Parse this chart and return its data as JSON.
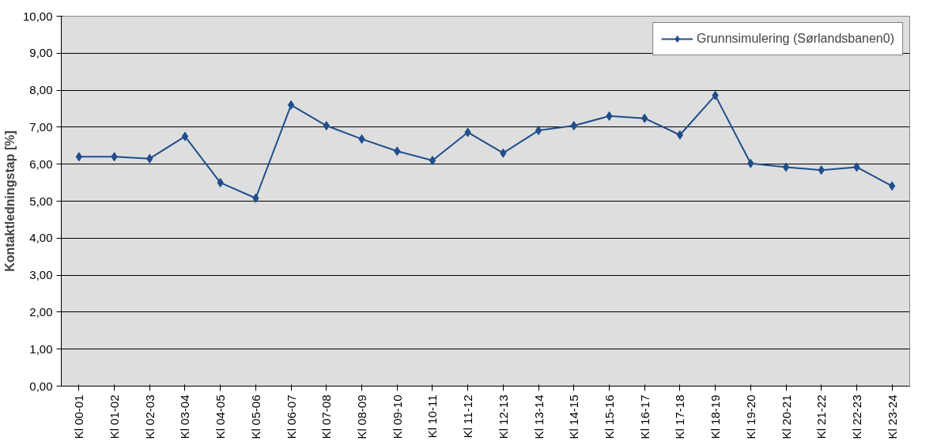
{
  "chart_data": {
    "type": "line",
    "ylabel": "Kontaktledningstap [%]",
    "categories": [
      "Kl 00-01",
      "Kl 01-02",
      "Kl 02-03",
      "Kl 03-04",
      "Kl 04-05",
      "Kl 05-06",
      "Kl 06-07",
      "Kl 07-08",
      "Kl 08-09",
      "Kl 09-10",
      "Kl 10-11",
      "Kl 11-12",
      "Kl 12-13",
      "Kl 13-14",
      "Kl 14-15",
      "Kl 15-16",
      "Kl 16-17",
      "Kl 17-18",
      "Kl 18-19",
      "Kl 19-20",
      "Kl 20-21",
      "Kl 21-22",
      "Kl 22-23",
      "Kl 23-24"
    ],
    "series": [
      {
        "name": "Grunnsimulering (Sørlandsbanen0)",
        "color": "#1f4e8c",
        "values": [
          6.2,
          6.2,
          6.15,
          6.75,
          5.5,
          5.08,
          7.6,
          7.04,
          6.68,
          6.35,
          6.1,
          6.86,
          6.3,
          6.91,
          7.04,
          7.3,
          7.24,
          6.79,
          7.86,
          6.02,
          5.92,
          5.84,
          5.92,
          5.41
        ]
      }
    ],
    "ylim": [
      0,
      10
    ],
    "yticks": [
      {
        "value": 0,
        "label": "0,00"
      },
      {
        "value": 1,
        "label": "1,00"
      },
      {
        "value": 2,
        "label": "2,00"
      },
      {
        "value": 3,
        "label": "3,00"
      },
      {
        "value": 4,
        "label": "4,00"
      },
      {
        "value": 5,
        "label": "5,00"
      },
      {
        "value": 6,
        "label": "6,00"
      },
      {
        "value": 7,
        "label": "7,00"
      },
      {
        "value": 8,
        "label": "8,00"
      },
      {
        "value": 9,
        "label": "9,00"
      },
      {
        "value": 10,
        "label": "10,00"
      }
    ],
    "grid": "y",
    "legend": "top right",
    "marker": "diamond",
    "line_style": "solid"
  }
}
